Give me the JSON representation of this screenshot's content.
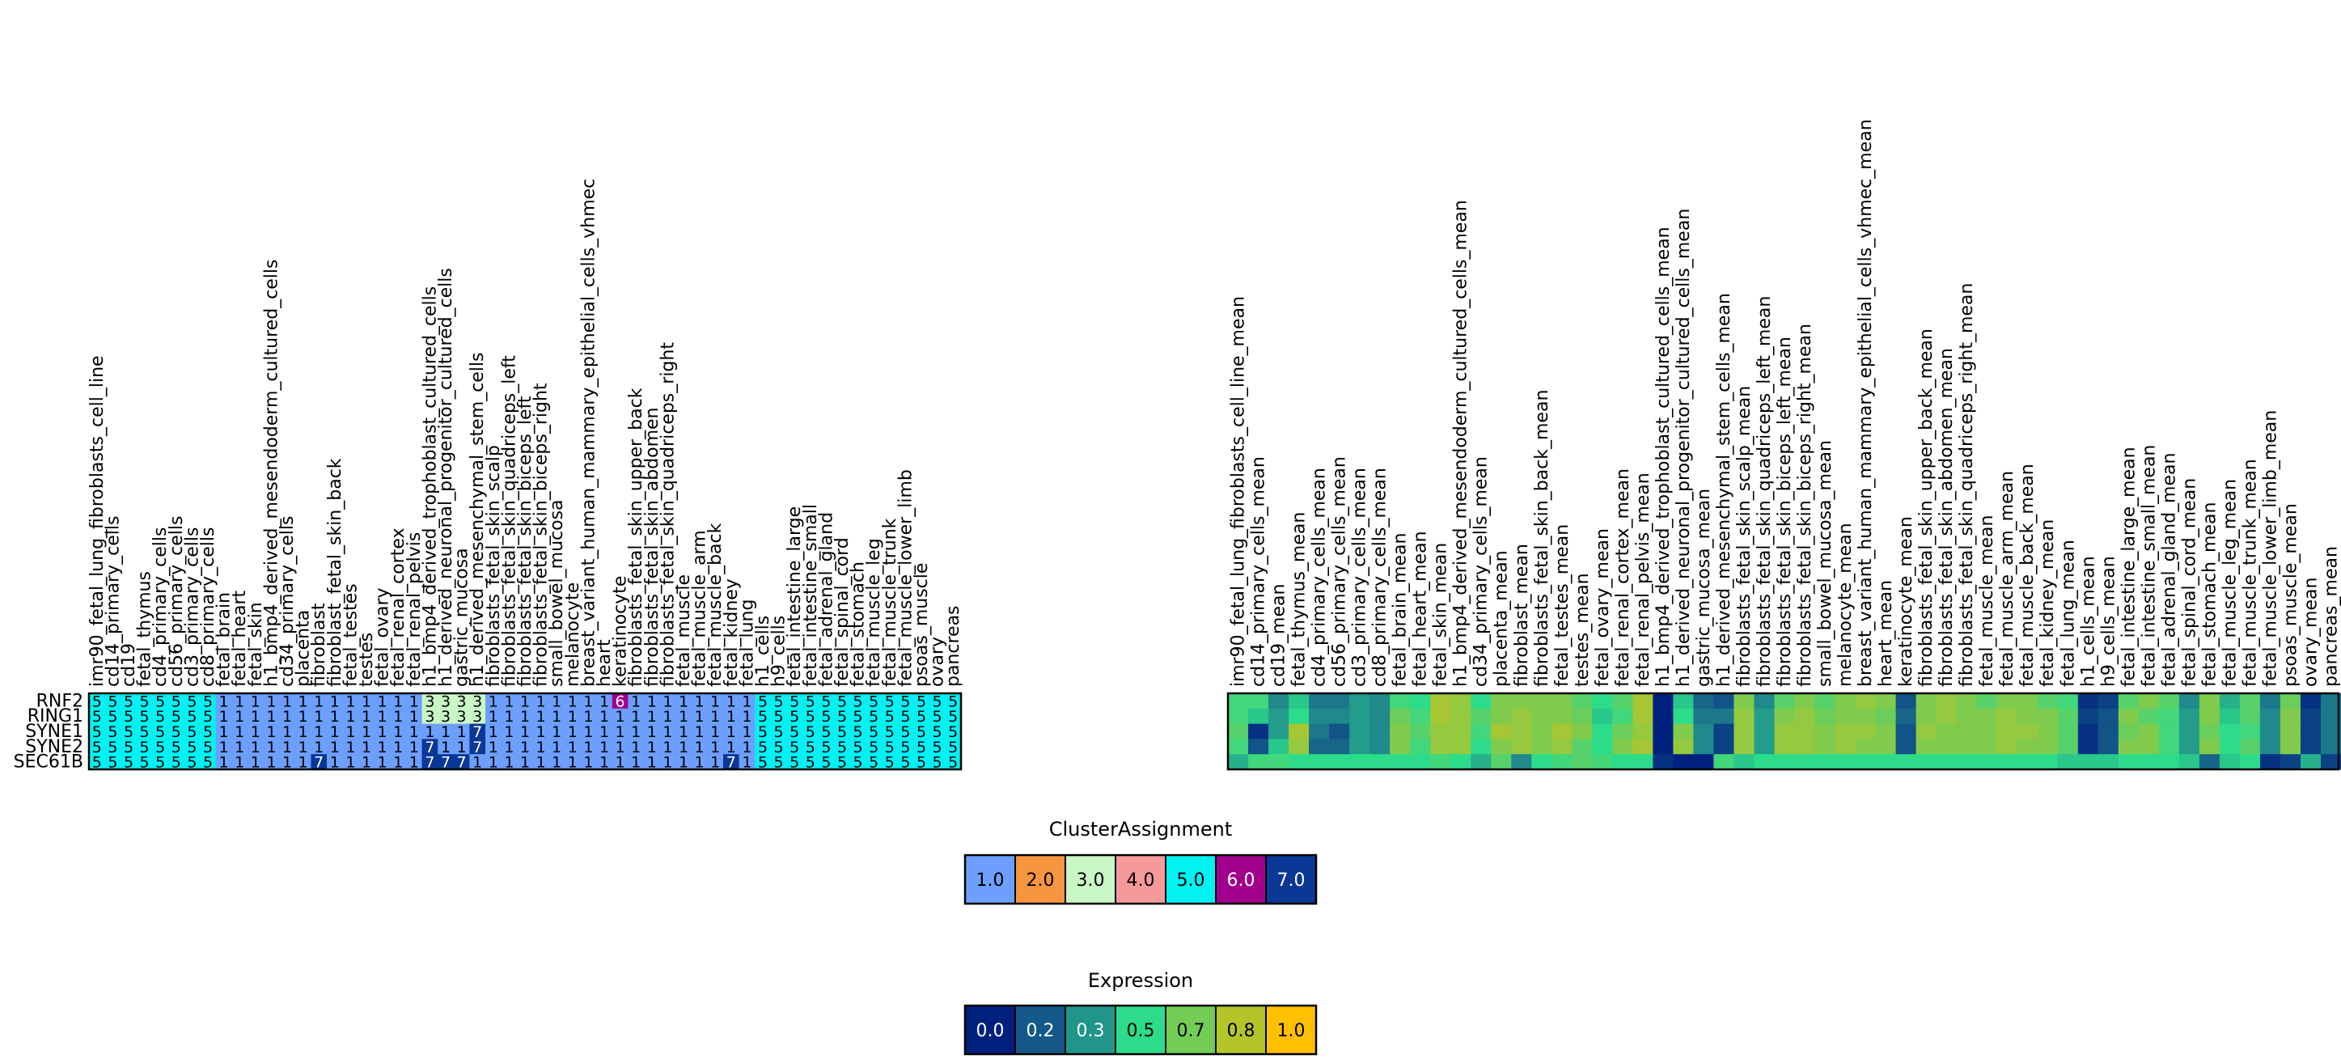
{
  "chart_data": [
    {
      "type": "heatmap",
      "rows": [
        "RNF2",
        "RING1",
        "SYNE1",
        "SYNE2",
        "SEC61B"
      ],
      "columns": [
        "imr90_fetal_lung_fibroblasts_cell_line",
        "cd14_primary_cells",
        "cd19",
        "fetal_thymus",
        "cd4_primary_cells",
        "cd56_primary_cells",
        "cd3_primary_cells",
        "cd8_primary_cells",
        "fetal_brain",
        "fetal_heart",
        "fetal_skin",
        "h1_bmp4_derived_mesendoderm_cultured_cells",
        "cd34_primary_cells",
        "placenta",
        "fibroblast",
        "fibroblast_fetal_skin_back",
        "fetal_testes",
        "testes",
        "fetal_ovary",
        "fetal_renal_cortex",
        "fetal_renal_pelvis",
        "h1_bmp4_derived_trophoblast_cultured_cells",
        "h1_derived_neuronal_progenitor_cultured_cells",
        "gastric_mucosa",
        "h1_derived_mesenchymal_stem_cells",
        "fibroblasts_fetal_skin_scalp",
        "fibroblasts_fetal_skin_quadriceps_left",
        "fibroblasts_fetal_skin_biceps_left",
        "fibroblasts_fetal_skin_biceps_right",
        "small_bowel_mucosa",
        "melanocyte",
        "breast_variant_human_mammary_epithelial_cells_vhmec",
        "heart",
        "keratinocyte",
        "fibroblasts_fetal_skin_upper_back",
        "fibroblasts_fetal_skin_abdomen",
        "fibroblasts_fetal_skin_quadriceps_right",
        "fetal_muscle",
        "fetal_muscle_arm",
        "fetal_muscle_back",
        "fetal_kidney",
        "fetal_lung",
        "h1_cells",
        "h9_cells",
        "fetal_intestine_large",
        "fetal_intestine_small",
        "fetal_adrenal_gland",
        "fetal_spinal_cord",
        "fetal_stomach",
        "fetal_muscle_leg",
        "fetal_muscle_trunk",
        "fetal_muscle_lower_limb",
        "psoas_muscle",
        "ovary",
        "pancreas"
      ],
      "values": [
        [
          5,
          5,
          5,
          5,
          5,
          5,
          5,
          5,
          1,
          1,
          1,
          1,
          1,
          1,
          1,
          1,
          1,
          1,
          1,
          1,
          1,
          3,
          3,
          3,
          3,
          1,
          1,
          1,
          1,
          1,
          1,
          1,
          1,
          6,
          1,
          1,
          1,
          1,
          1,
          1,
          1,
          1,
          5,
          5,
          5,
          5,
          5,
          5,
          5,
          5,
          5,
          5,
          5,
          5,
          5
        ],
        [
          5,
          5,
          5,
          5,
          5,
          5,
          5,
          5,
          1,
          1,
          1,
          1,
          1,
          1,
          1,
          1,
          1,
          1,
          1,
          1,
          1,
          3,
          3,
          3,
          3,
          1,
          1,
          1,
          1,
          1,
          1,
          1,
          1,
          1,
          1,
          1,
          1,
          1,
          1,
          1,
          1,
          1,
          5,
          5,
          5,
          5,
          5,
          5,
          5,
          5,
          5,
          5,
          5,
          5,
          5
        ],
        [
          5,
          5,
          5,
          5,
          5,
          5,
          5,
          5,
          1,
          1,
          1,
          1,
          1,
          1,
          1,
          1,
          1,
          1,
          1,
          1,
          1,
          1,
          1,
          1,
          7,
          1,
          1,
          1,
          1,
          1,
          1,
          1,
          1,
          1,
          1,
          1,
          1,
          1,
          1,
          1,
          1,
          1,
          5,
          5,
          5,
          5,
          5,
          5,
          5,
          5,
          5,
          5,
          5,
          5,
          5
        ],
        [
          5,
          5,
          5,
          5,
          5,
          5,
          5,
          5,
          1,
          1,
          1,
          1,
          1,
          1,
          1,
          1,
          1,
          1,
          1,
          1,
          1,
          7,
          1,
          1,
          7,
          1,
          1,
          1,
          1,
          1,
          1,
          1,
          1,
          1,
          1,
          1,
          1,
          1,
          1,
          1,
          1,
          1,
          5,
          5,
          5,
          5,
          5,
          5,
          5,
          5,
          5,
          5,
          5,
          5,
          5
        ],
        [
          5,
          5,
          5,
          5,
          5,
          5,
          5,
          5,
          1,
          1,
          1,
          1,
          1,
          1,
          7,
          1,
          1,
          1,
          1,
          1,
          1,
          7,
          7,
          7,
          1,
          1,
          1,
          1,
          1,
          1,
          1,
          1,
          1,
          1,
          1,
          1,
          1,
          1,
          1,
          1,
          7,
          1,
          5,
          5,
          5,
          5,
          5,
          5,
          5,
          5,
          5,
          5,
          5,
          5,
          5
        ]
      ]
    },
    {
      "type": "heatmap",
      "rows": [
        "RNF2",
        "RING1",
        "SYNE1",
        "SYNE2",
        "SEC61B"
      ],
      "columns": [
        "imr90_fetal_lung_fibroblasts_cell_line_mean",
        "cd14_primary_cells_mean",
        "cd19_mean",
        "fetal_thymus_mean",
        "cd4_primary_cells_mean",
        "cd56_primary_cells_mean",
        "cd3_primary_cells_mean",
        "cd8_primary_cells_mean",
        "fetal_brain_mean",
        "fetal_heart_mean",
        "fetal_skin_mean",
        "h1_bmp4_derived_mesendoderm_cultured_cells_mean",
        "cd34_primary_cells_mean",
        "placenta_mean",
        "fibroblast_mean",
        "fibroblasts_fetal_skin_back_mean",
        "fetal_testes_mean",
        "testes_mean",
        "fetal_ovary_mean",
        "fetal_renal_cortex_mean",
        "fetal_renal_pelvis_mean",
        "h1_bmp4_derived_trophoblast_cultured_cells_mean",
        "h1_derived_neuronal_progenitor_cultured_cells_mean",
        "gastric_mucosa_mean",
        "h1_derived_mesenchymal_stem_cells_mean",
        "fibroblasts_fetal_skin_scalp_mean",
        "fibroblasts_fetal_skin_quadriceps_left_mean",
        "fibroblasts_fetal_skin_biceps_left_mean",
        "fibroblasts_fetal_skin_biceps_right_mean",
        "small_bowel_mucosa_mean",
        "melanocyte_mean",
        "breast_variant_human_mammary_epithelial_cells_vhmec_mean",
        "heart_mean",
        "keratinocyte_mean",
        "fibroblasts_fetal_skin_upper_back_mean",
        "fibroblasts_fetal_skin_abdomen_mean",
        "fibroblasts_fetal_skin_quadriceps_right_mean",
        "fetal_muscle_mean",
        "fetal_muscle_arm_mean",
        "fetal_muscle_back_mean",
        "fetal_kidney_mean",
        "fetal_lung_mean",
        "h1_cells_mean",
        "h9_cells_mean",
        "fetal_intestine_large_mean",
        "fetal_intestine_small_mean",
        "fetal_adrenal_gland_mean",
        "fetal_spinal_cord_mean",
        "fetal_stomach_mean",
        "fetal_muscle_leg_mean",
        "fetal_muscle_trunk_mean",
        "fetal_muscle_lower_limb_mean",
        "psoas_muscle_mean",
        "ovary_mean",
        "pancreas_mean"
      ],
      "values": [
        [
          0.55,
          0.55,
          0.3,
          0.45,
          0.25,
          0.25,
          0.35,
          0.3,
          0.55,
          0.5,
          0.8,
          0.75,
          0.5,
          0.7,
          0.7,
          0.7,
          0.7,
          0.6,
          0.5,
          0.6,
          0.8,
          0.0,
          0.45,
          0.2,
          0.15,
          0.7,
          0.3,
          0.6,
          0.7,
          0.6,
          0.7,
          0.75,
          0.7,
          0.15,
          0.7,
          0.75,
          0.7,
          0.6,
          0.7,
          0.7,
          0.6,
          0.55,
          0.05,
          0.1,
          0.6,
          0.7,
          0.6,
          0.3,
          0.7,
          0.4,
          0.6,
          0.25,
          0.65,
          0.05,
          0.25
        ],
        [
          0.55,
          0.45,
          0.35,
          0.5,
          0.3,
          0.3,
          0.35,
          0.3,
          0.65,
          0.55,
          0.8,
          0.75,
          0.6,
          0.7,
          0.75,
          0.7,
          0.7,
          0.65,
          0.45,
          0.55,
          0.8,
          0.0,
          0.5,
          0.25,
          0.25,
          0.75,
          0.35,
          0.7,
          0.75,
          0.65,
          0.7,
          0.7,
          0.65,
          0.2,
          0.7,
          0.75,
          0.7,
          0.7,
          0.75,
          0.7,
          0.7,
          0.6,
          0.1,
          0.15,
          0.7,
          0.6,
          0.55,
          0.35,
          0.7,
          0.45,
          0.6,
          0.3,
          0.7,
          0.1,
          0.25
        ],
        [
          0.6,
          0.05,
          0.35,
          0.8,
          0.25,
          0.15,
          0.35,
          0.3,
          0.7,
          0.6,
          0.75,
          0.75,
          0.55,
          0.8,
          0.75,
          0.7,
          0.8,
          0.7,
          0.5,
          0.65,
          0.75,
          0.0,
          0.7,
          0.3,
          0.1,
          0.75,
          0.35,
          0.75,
          0.75,
          0.7,
          0.75,
          0.75,
          0.7,
          0.15,
          0.75,
          0.7,
          0.7,
          0.7,
          0.75,
          0.75,
          0.7,
          0.6,
          0.05,
          0.15,
          0.65,
          0.7,
          0.55,
          0.35,
          0.65,
          0.5,
          0.55,
          0.3,
          0.7,
          0.1,
          0.25
        ],
        [
          0.55,
          0.15,
          0.45,
          0.75,
          0.2,
          0.2,
          0.35,
          0.3,
          0.7,
          0.55,
          0.75,
          0.75,
          0.5,
          0.7,
          0.75,
          0.7,
          0.75,
          0.6,
          0.5,
          0.7,
          0.8,
          0.0,
          0.75,
          0.3,
          0.1,
          0.75,
          0.35,
          0.75,
          0.75,
          0.7,
          0.75,
          0.7,
          0.7,
          0.15,
          0.7,
          0.7,
          0.7,
          0.7,
          0.75,
          0.7,
          0.7,
          0.6,
          0.05,
          0.15,
          0.7,
          0.7,
          0.55,
          0.35,
          0.7,
          0.5,
          0.6,
          0.3,
          0.7,
          0.1,
          0.25
        ],
        [
          0.4,
          0.55,
          0.55,
          0.5,
          0.5,
          0.5,
          0.5,
          0.5,
          0.5,
          0.5,
          0.55,
          0.5,
          0.4,
          0.6,
          0.3,
          0.5,
          0.55,
          0.6,
          0.55,
          0.5,
          0.5,
          0.05,
          0.0,
          0.0,
          0.55,
          0.45,
          0.5,
          0.5,
          0.5,
          0.5,
          0.5,
          0.5,
          0.5,
          0.5,
          0.5,
          0.5,
          0.5,
          0.5,
          0.5,
          0.5,
          0.5,
          0.45,
          0.45,
          0.45,
          0.5,
          0.5,
          0.5,
          0.45,
          0.2,
          0.45,
          0.5,
          0.05,
          0.1,
          0.4,
          0.1
        ]
      ]
    }
  ],
  "legends": [
    {
      "title": "ClusterAssignment",
      "labels": [
        "1.0",
        "2.0",
        "3.0",
        "4.0",
        "5.0",
        "6.0",
        "7.0"
      ],
      "colors": [
        "#6c9fff",
        "#f7963e",
        "#c9f7c5",
        "#f49a9a",
        "#00f2f2",
        "#a1008c",
        "#0b3796"
      ],
      "text_colors": [
        "#000000",
        "#000000",
        "#000000",
        "#000000",
        "#000000",
        "#ffffff",
        "#ffffff"
      ]
    },
    {
      "title": "Expression",
      "labels": [
        "0.0",
        "0.2",
        "0.3",
        "0.5",
        "0.7",
        "0.8",
        "1.0"
      ],
      "colors": [
        "#00207f",
        "#145989",
        "#22958b",
        "#2cdc8a",
        "#73cc55",
        "#b4c52a",
        "#ffc000"
      ],
      "text_colors": [
        "#ffffff",
        "#ffffff",
        "#ffffff",
        "#000000",
        "#000000",
        "#000000",
        "#000000"
      ]
    }
  ],
  "colors": {
    "cluster": {
      "1": "#6c9fff",
      "2": "#f7963e",
      "3": "#c9f7c5",
      "4": "#f49a9a",
      "5": "#00f2f2",
      "6": "#a1008c",
      "7": "#0b3796"
    },
    "cluster_text": {
      "1": "#000000",
      "2": "#000000",
      "3": "#000000",
      "4": "#000000",
      "5": "#000000",
      "6": "#ffffff",
      "7": "#ffffff"
    },
    "expression_stops": [
      "#00207f",
      "#145989",
      "#22958b",
      "#2cdc8a",
      "#73cc55",
      "#b4c52a",
      "#ffc000"
    ]
  }
}
